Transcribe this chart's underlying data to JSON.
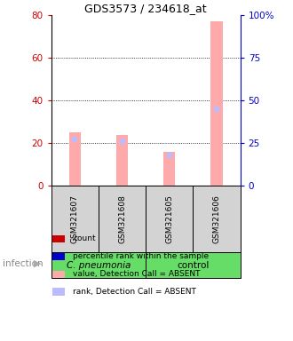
{
  "title": "GDS3573 / 234618_at",
  "samples": [
    "GSM321607",
    "GSM321608",
    "GSM321605",
    "GSM321606"
  ],
  "group_label_left": "C. pneumonia",
  "group_label_right": "control",
  "group_bg_color": "#66dd66",
  "sample_bg_color": "#d3d3d3",
  "bar_color_absent": "#ffaaaa",
  "rank_color_absent": "#bbbbff",
  "values_absent": [
    25,
    24,
    16,
    77
  ],
  "ranks_absent": [
    27,
    26,
    18,
    45
  ],
  "left_yticks": [
    0,
    20,
    40,
    60,
    80
  ],
  "right_yticks": [
    0,
    25,
    50,
    75,
    100
  ],
  "right_tick_labels": [
    "0",
    "25",
    "50",
    "75",
    "100%"
  ],
  "ylim_left": [
    0,
    80
  ],
  "ylim_right": [
    0,
    100
  ],
  "left_tick_color": "#cc0000",
  "right_tick_color": "#0000cc",
  "infection_label": "infection",
  "legend_items": [
    {
      "color": "#cc0000",
      "label": "count"
    },
    {
      "color": "#0000cc",
      "label": "percentile rank within the sample"
    },
    {
      "color": "#ffaaaa",
      "label": "value, Detection Call = ABSENT"
    },
    {
      "color": "#bbbbff",
      "label": "rank, Detection Call = ABSENT"
    }
  ],
  "bar_width": 0.25
}
